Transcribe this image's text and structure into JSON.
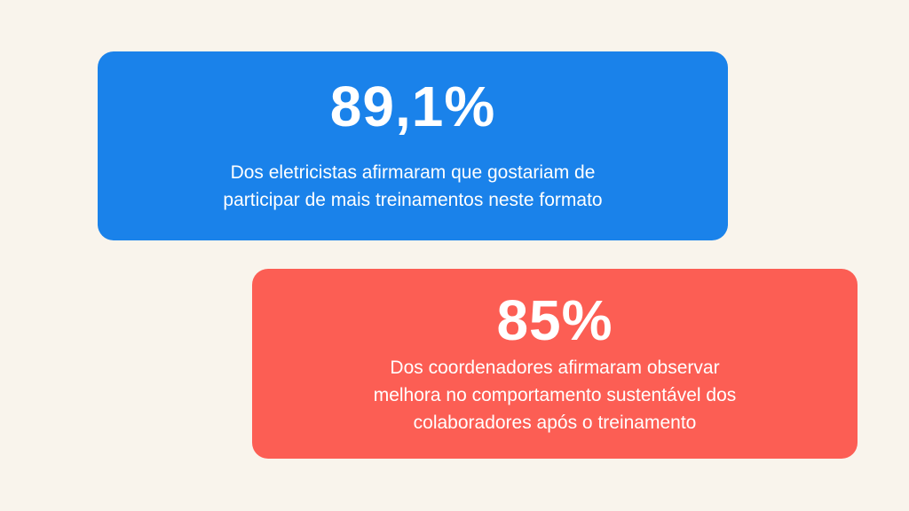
{
  "colors": {
    "background": "#f9f4ec",
    "card_blue": "#1a82ea",
    "card_red": "#fc5e54",
    "text": "#ffffff"
  },
  "cards": [
    {
      "stat": "89,1%",
      "lines": [
        "Dos eletricistas afirmaram que gostariam de",
        "participar de mais treinamentos neste formato"
      ]
    },
    {
      "stat": "85%",
      "lines": [
        "Dos coordenadores afirmaram observar",
        "melhora no comportamento sustentável dos",
        "colaboradores após o treinamento"
      ]
    }
  ]
}
